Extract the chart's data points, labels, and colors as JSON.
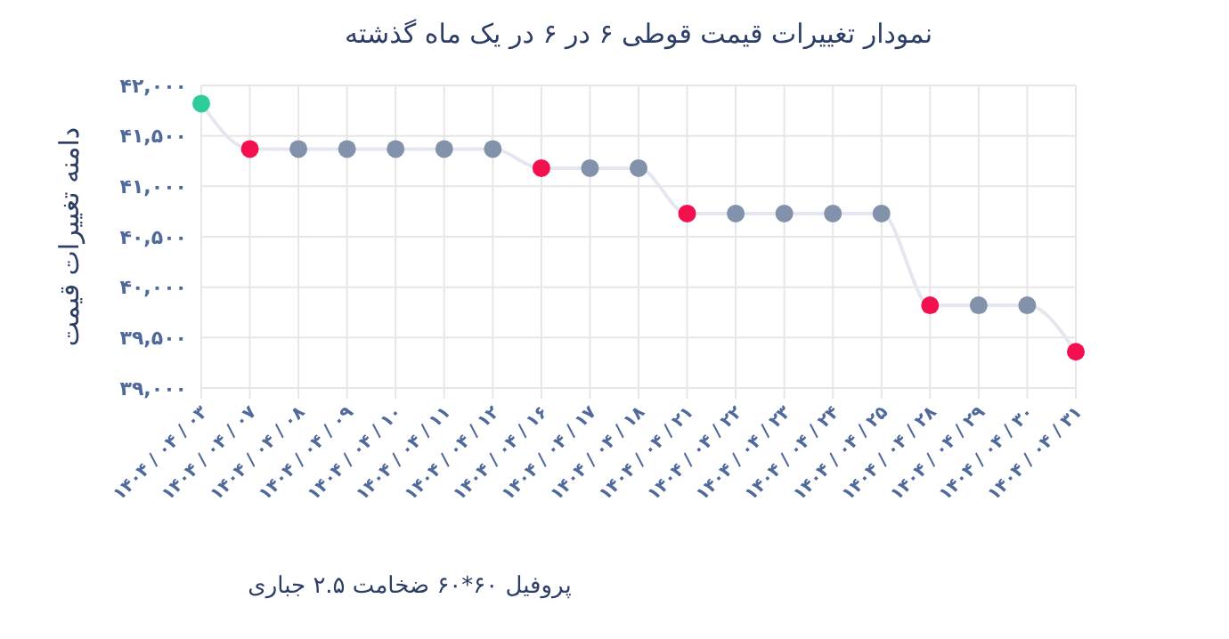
{
  "chart_data": {
    "type": "line",
    "title": "نمودار تغییرات قیمت قوطی ۶ در ۶ در یک ماه گذشته",
    "xlabel": "پروفیل ۶۰*۶۰ ضخامت ۲.۵ جباری",
    "ylabel": "دامنه تغییرات قیمت",
    "categories": [
      "۱۴۰۴ / ۰۴ / ۰۳",
      "۱۴۰۴ / ۰۴ / ۰۷",
      "۱۴۰۴ / ۰۴ / ۰۸",
      "۱۴۰۴ / ۰۴ / ۰۹",
      "۱۴۰۴ / ۰۴ / ۱۰",
      "۱۴۰۴ / ۰۴ / ۱۱",
      "۱۴۰۴ / ۰۴ / ۱۲",
      "۱۴۰۴ / ۰۴ / ۱۶",
      "۱۴۰۴ / ۰۴ / ۱۷",
      "۱۴۰۴ / ۰۴ / ۱۸",
      "۱۴۰۴ / ۰۴ / ۲۱",
      "۱۴۰۴ / ۰۴ / ۲۲",
      "۱۴۰۴ / ۰۴ / ۲۳",
      "۱۴۰۴ / ۰۴ / ۲۴",
      "۱۴۰۴ / ۰۴ / ۲۵",
      "۱۴۰۴ / ۰۴ / ۲۸",
      "۱۴۰۴ / ۰۴ / ۲۹",
      "۱۴۰۴ / ۰۴ / ۳۰",
      "۱۴۰۴ / ۰۴ / ۳۱"
    ],
    "series": [
      {
        "color": "#e4e7ef",
        "values": [
          41820,
          41370,
          41370,
          41370,
          41370,
          41370,
          41370,
          41180,
          41180,
          41180,
          40730,
          40730,
          40730,
          40730,
          40730,
          39820,
          39820,
          39820,
          39360
        ],
        "colors": [
          "#2ecc9a",
          "#f2104f",
          "#8392ab",
          "#8392ab",
          "#8392ab",
          "#8392ab",
          "#8392ab",
          "#f2104f",
          "#8392ab",
          "#8392ab",
          "#f2104f",
          "#8392ab",
          "#8392ab",
          "#8392ab",
          "#8392ab",
          "#f2104f",
          "#8392ab",
          "#8392ab",
          "#f2104f"
        ]
      }
    ],
    "ylim": [
      39000,
      42000
    ],
    "yticks": [
      {
        "value": 39000,
        "label": "۳۹,۰۰۰"
      },
      {
        "value": 39500,
        "label": "۳۹,۵۰۰"
      },
      {
        "value": 40000,
        "label": "۴۰,۰۰۰"
      },
      {
        "value": 40500,
        "label": "۴۰,۵۰۰"
      },
      {
        "value": 41000,
        "label": "۴۱,۰۰۰"
      },
      {
        "value": 41500,
        "label": "۴۱,۵۰۰"
      },
      {
        "value": 42000,
        "label": "۴۲,۰۰۰"
      }
    ],
    "grid": true,
    "marker": "circle",
    "line_style": "solid"
  }
}
